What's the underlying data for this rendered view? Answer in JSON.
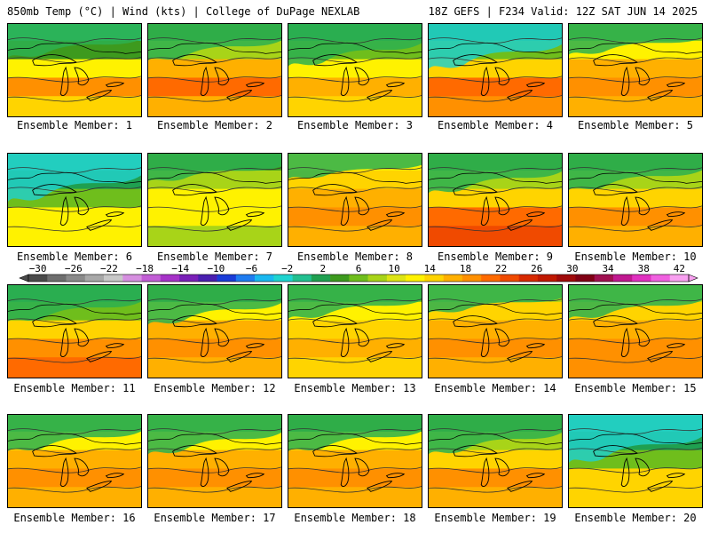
{
  "header": {
    "left_title": "850mb Temp (°C) | Wind (kts) | College of DuPage NEXLAB",
    "right_title": "18Z GEFS | F234 Valid: 12Z SAT JUN 14 2025"
  },
  "caption_prefix": "Ensemble Member:",
  "members": [
    {
      "label": "Ensemble Member: 1",
      "warm": [
        0.0,
        0.2,
        0.5,
        0.8,
        0.6
      ],
      "cool_nw": 0.5
    },
    {
      "label": "Ensemble Member: 2",
      "warm": [
        0.2,
        0.4,
        0.7,
        0.9,
        0.7
      ],
      "cool_nw": 0.6
    },
    {
      "label": "Ensemble Member: 3",
      "warm": [
        0.1,
        0.3,
        0.5,
        0.7,
        0.6
      ],
      "cool_nw": 0.8
    },
    {
      "label": "Ensemble Member: 4",
      "warm": [
        0.1,
        0.3,
        0.6,
        0.9,
        0.8
      ],
      "cool_nw": 0.9
    },
    {
      "label": "Ensemble Member: 5",
      "warm": [
        0.3,
        0.5,
        0.7,
        0.8,
        0.7
      ],
      "cool_nw": 0.4
    },
    {
      "label": "Ensemble Member: 6",
      "warm": [
        0.0,
        0.1,
        0.3,
        0.5,
        0.5
      ],
      "cool_nw": 1.0
    },
    {
      "label": "Ensemble Member: 7",
      "warm": [
        0.2,
        0.4,
        0.5,
        0.5,
        0.4
      ],
      "cool_nw": 0.3
    },
    {
      "label": "Ensemble Member: 8",
      "warm": [
        0.5,
        0.6,
        0.7,
        0.8,
        0.7
      ],
      "cool_nw": 0.2
    },
    {
      "label": "Ensemble Member: 9",
      "warm": [
        0.2,
        0.4,
        0.6,
        0.9,
        1.0
      ],
      "cool_nw": 0.7
    },
    {
      "label": "Ensemble Member: 10",
      "warm": [
        0.2,
        0.4,
        0.6,
        0.8,
        0.7
      ],
      "cool_nw": 0.6
    },
    {
      "label": "Ensemble Member: 11",
      "warm": [
        0.1,
        0.3,
        0.6,
        0.8,
        0.9
      ],
      "cool_nw": 0.6
    },
    {
      "label": "Ensemble Member: 12",
      "warm": [
        0.2,
        0.5,
        0.7,
        0.8,
        0.7
      ],
      "cool_nw": 0.7
    },
    {
      "label": "Ensemble Member: 13",
      "warm": [
        0.3,
        0.5,
        0.6,
        0.7,
        0.6
      ],
      "cool_nw": 0.5
    },
    {
      "label": "Ensemble Member: 14",
      "warm": [
        0.4,
        0.6,
        0.7,
        0.8,
        0.7
      ],
      "cool_nw": 0.3
    },
    {
      "label": "Ensemble Member: 15",
      "warm": [
        0.4,
        0.6,
        0.7,
        0.8,
        0.8
      ],
      "cool_nw": 0.5
    },
    {
      "label": "Ensemble Member: 16",
      "warm": [
        0.3,
        0.5,
        0.7,
        0.8,
        0.7
      ],
      "cool_nw": 0.6
    },
    {
      "label": "Ensemble Member: 17",
      "warm": [
        0.3,
        0.5,
        0.7,
        0.8,
        0.7
      ],
      "cool_nw": 0.7
    },
    {
      "label": "Ensemble Member: 18",
      "warm": [
        0.2,
        0.5,
        0.7,
        0.8,
        0.7
      ],
      "cool_nw": 0.6
    },
    {
      "label": "Ensemble Member: 19",
      "warm": [
        0.2,
        0.4,
        0.6,
        0.8,
        0.7
      ],
      "cool_nw": 0.7
    },
    {
      "label": "Ensemble Member: 20",
      "warm": [
        0.0,
        0.1,
        0.3,
        0.6,
        0.6
      ],
      "cool_nw": 1.0
    }
  ],
  "colorbar": {
    "tick_labels": [
      "−30",
      "−26",
      "−22",
      "−18",
      "−14",
      "−10",
      "−6",
      "−2",
      "2",
      "6",
      "10",
      "14",
      "18",
      "22",
      "26",
      "30",
      "34",
      "38",
      "42"
    ],
    "colors": [
      "#4a4a4a",
      "#6e6e6e",
      "#8a8a8a",
      "#a8a8a8",
      "#c8c8c8",
      "#d68fe0",
      "#c25ed6",
      "#a632c8",
      "#7a20b8",
      "#4a1fb0",
      "#1a3cd8",
      "#1f7cf0",
      "#19b8f0",
      "#1fd4d0",
      "#22c090",
      "#1fa050",
      "#3d9a1e",
      "#6fbe1c",
      "#a8d418",
      "#dde414",
      "#fff200",
      "#ffd400",
      "#ffb000",
      "#ff9000",
      "#ff6a00",
      "#f04a00",
      "#d82a00",
      "#c01800",
      "#a00a0a",
      "#800014",
      "#a01050",
      "#c01890",
      "#e030c0",
      "#f060e0",
      "#f8a0f0"
    ]
  }
}
